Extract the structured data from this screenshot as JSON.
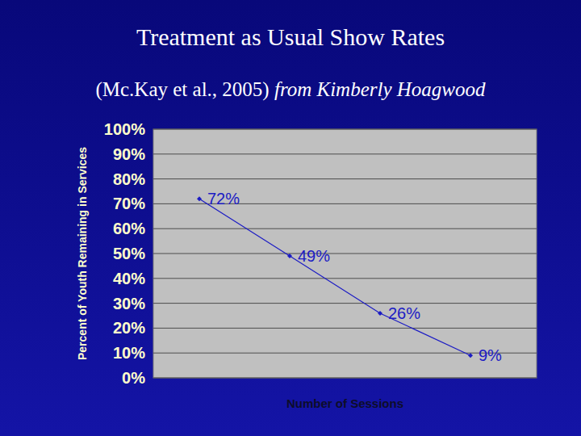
{
  "chart_data": {
    "type": "line",
    "title": "Treatment as Usual Show Rates",
    "subtitle": "(Mc.Kay et al., 2005)",
    "annotations": [
      "from Kimberly Hoagwood"
    ],
    "x_label": "Number of Sessions",
    "y_label": "Percent of Youth Remaining in Services",
    "categories": [
      null,
      null,
      null,
      null
    ],
    "values": [
      72,
      49,
      26,
      9
    ],
    "value_labels": [
      "72%",
      "49%",
      "26%",
      "9%"
    ],
    "color": "#1c1cc4",
    "marker": "diamond",
    "data_labels": true,
    "ylim": [
      0,
      100
    ],
    "yticks": [
      {
        "value": 0,
        "label": "0%"
      },
      {
        "value": 10,
        "label": "10%"
      },
      {
        "value": 20,
        "label": "20%"
      },
      {
        "value": 30,
        "label": "30%"
      },
      {
        "value": 40,
        "label": "40%"
      },
      {
        "value": 50,
        "label": "50%"
      },
      {
        "value": 60,
        "label": "60%"
      },
      {
        "value": 70,
        "label": "70%"
      },
      {
        "value": 80,
        "label": "80%"
      },
      {
        "value": 90,
        "label": "90%"
      },
      {
        "value": 100,
        "label": "100%"
      }
    ],
    "grid": true,
    "tick_labels": "y"
  }
}
